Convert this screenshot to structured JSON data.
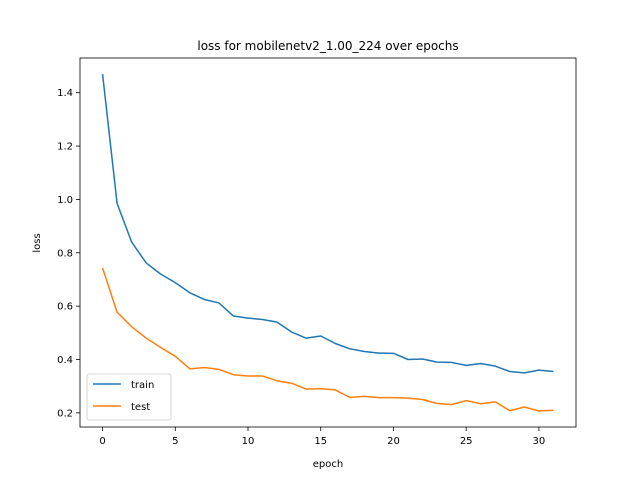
{
  "chart_data": {
    "type": "line",
    "title": "loss for mobilenetv2_1.00_224 over epochs",
    "xlabel": "epoch",
    "ylabel": "loss",
    "xlim": [
      -1.55,
      32.55
    ],
    "ylim": [
      0.147,
      1.53
    ],
    "xticks": [
      0,
      5,
      10,
      15,
      20,
      25,
      30
    ],
    "yticks": [
      0.2,
      0.4,
      0.6,
      0.8,
      1.0,
      1.2,
      1.4
    ],
    "grid": false,
    "legend_position": "lower-left",
    "x": [
      0,
      1,
      2,
      3,
      4,
      5,
      6,
      7,
      8,
      9,
      10,
      11,
      12,
      13,
      14,
      15,
      16,
      17,
      18,
      19,
      20,
      21,
      22,
      23,
      24,
      25,
      26,
      27,
      28,
      29,
      30,
      31
    ],
    "series": [
      {
        "name": "train",
        "color": "#1f77b4",
        "values": [
          1.47,
          0.985,
          0.84,
          0.762,
          0.72,
          0.688,
          0.65,
          0.625,
          0.612,
          0.563,
          0.555,
          0.55,
          0.54,
          0.503,
          0.48,
          0.488,
          0.46,
          0.44,
          0.43,
          0.424,
          0.423,
          0.4,
          0.402,
          0.39,
          0.389,
          0.378,
          0.385,
          0.375,
          0.355,
          0.35,
          0.36,
          0.355
        ]
      },
      {
        "name": "test",
        "color": "#ff7f0e",
        "values": [
          0.743,
          0.577,
          0.523,
          0.48,
          0.445,
          0.412,
          0.365,
          0.37,
          0.363,
          0.343,
          0.338,
          0.338,
          0.32,
          0.311,
          0.289,
          0.291,
          0.286,
          0.258,
          0.262,
          0.257,
          0.257,
          0.255,
          0.25,
          0.235,
          0.231,
          0.246,
          0.234,
          0.241,
          0.208,
          0.222,
          0.207,
          0.21
        ]
      }
    ]
  }
}
